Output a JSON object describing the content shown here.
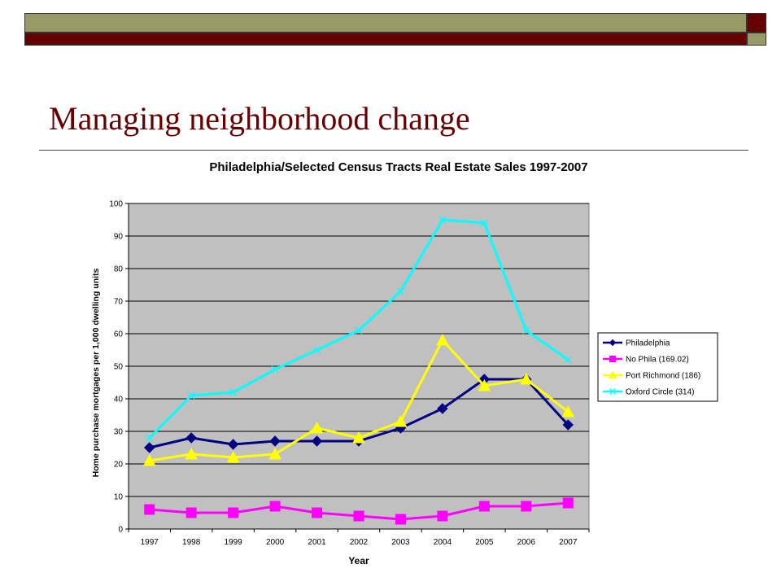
{
  "slide": {
    "title": "Managing neighborhood change"
  },
  "colors": {
    "band_olive": "#999966",
    "band_maroon": "#660000",
    "title": "#660000",
    "plot_bg": "#c0c0c0"
  },
  "chart_data": {
    "type": "line",
    "title": "Philadelphia/Selected Census Tracts Real Estate Sales 1997-2007",
    "xlabel": "Year",
    "ylabel": "Home purchase mortgages per 1,000 dwelling units",
    "categories": [
      "1997",
      "1998",
      "1999",
      "2000",
      "2001",
      "2002",
      "2003",
      "2004",
      "2005",
      "2006",
      "2007"
    ],
    "ylim": [
      0,
      100
    ],
    "yticks": [
      0,
      10,
      20,
      30,
      40,
      50,
      60,
      70,
      80,
      90,
      100
    ],
    "grid": true,
    "legend_position": "right",
    "series": [
      {
        "name": "Philadelphia",
        "color": "#000080",
        "marker": "diamond",
        "values": [
          25,
          28,
          26,
          27,
          27,
          27,
          31,
          37,
          46,
          46,
          32
        ]
      },
      {
        "name": "No Phila (169.02)",
        "color": "#ff00ff",
        "marker": "square",
        "values": [
          6,
          5,
          5,
          7,
          5,
          4,
          3,
          4,
          7,
          7,
          8
        ]
      },
      {
        "name": "Port Richmond (186)",
        "color": "#ffff00",
        "marker": "triangle",
        "values": [
          21,
          23,
          22,
          23,
          31,
          28,
          33,
          58,
          44,
          46,
          36
        ]
      },
      {
        "name": "Oxford Circle (314)",
        "color": "#00ffff",
        "marker": "x",
        "values": [
          28,
          41,
          42,
          49,
          55,
          61,
          73,
          95,
          94,
          61,
          52
        ]
      }
    ]
  }
}
